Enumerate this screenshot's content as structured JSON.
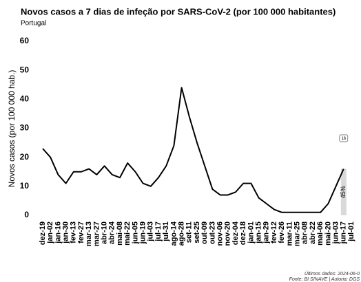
{
  "chart_data": {
    "type": "line",
    "title": "Novos casos a 7 dias de infeção por SARS-CoV-2 (por 100 000 habitantes)",
    "subtitle": "Portugal",
    "y_label": "Novos casos (por 100 000 hab.)",
    "categories": [
      "dez-19",
      "jan-02",
      "jan-16",
      "jan-30",
      "fev-13",
      "fev-27",
      "mar-13",
      "mar-27",
      "abr-10",
      "abr-24",
      "mai-08",
      "mai-22",
      "jun-05",
      "jun-19",
      "jul-03",
      "jul-17",
      "jul-31",
      "ago-14",
      "ago-28",
      "set-11",
      "set-25",
      "out-09",
      "out-23",
      "nov-06",
      "nov-20",
      "dez-04",
      "dez-18",
      "jan-01",
      "jan-15",
      "jan-29",
      "fev-12",
      "fev-26",
      "mar-11",
      "mar-25",
      "abr-08",
      "abr-22",
      "mai-06",
      "mai-20",
      "jun-03",
      "jun-17",
      "jul-01"
    ],
    "values": [
      23,
      20,
      14,
      11,
      15,
      15,
      16,
      14,
      17,
      14,
      13,
      18,
      15,
      11,
      10,
      13,
      17,
      24,
      44,
      34,
      25,
      17,
      9,
      7,
      7,
      8,
      11,
      11,
      6,
      4,
      2,
      1,
      1,
      1,
      1,
      1,
      1,
      4,
      10,
      16,
      null
    ],
    "color": "#000000",
    "change_label": "45%",
    "ylim": [
      0,
      60
    ],
    "yticks": [
      0,
      10,
      20,
      30,
      40,
      50,
      60
    ],
    "grid": false,
    "footer": [
      "Últimos dados: 2024-06-0",
      "Fonte: BI SINAVE | Autoria: DGS"
    ]
  }
}
